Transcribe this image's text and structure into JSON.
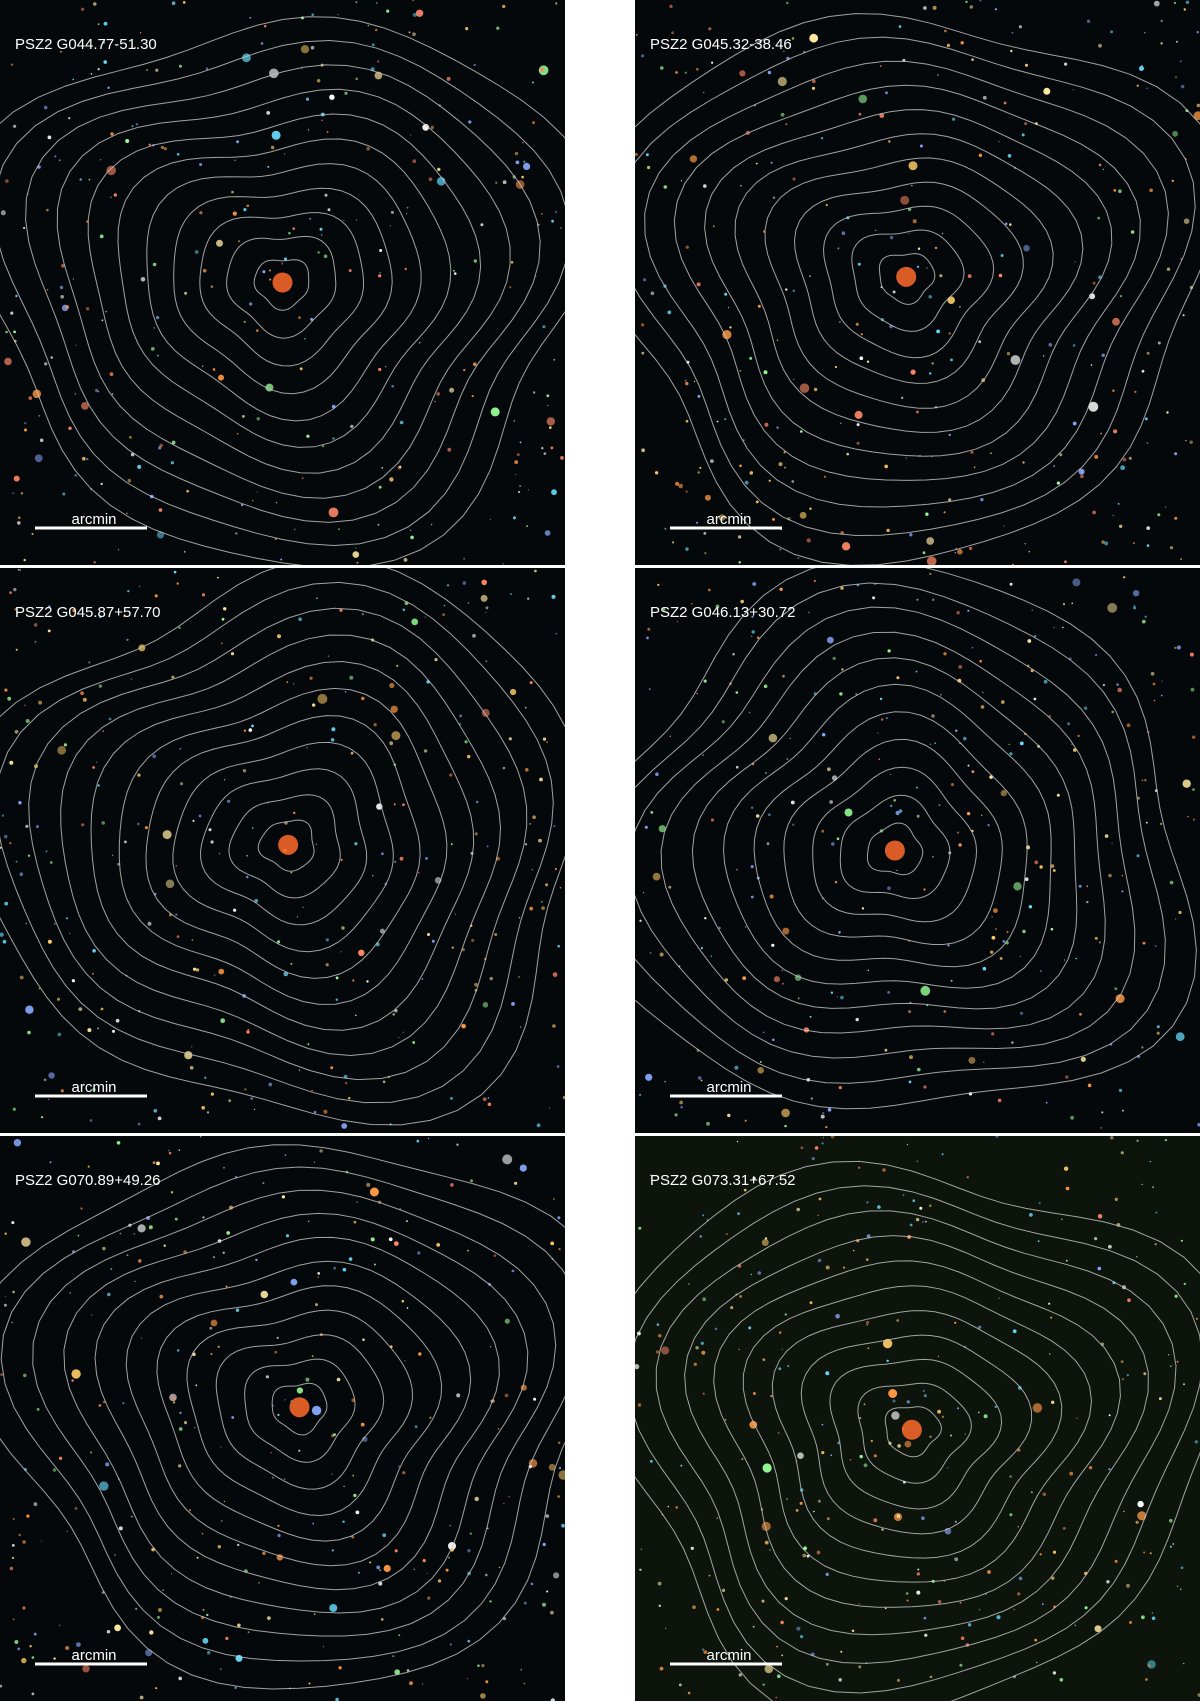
{
  "panels": [
    {
      "label": "PSZ2 G044.77-51.30",
      "scale_label": "arcmin"
    },
    {
      "label": "PSZ2 G045.32-38.46",
      "scale_label": "arcmin"
    },
    {
      "label": "PSZ2 G045.87+57.70",
      "scale_label": "arcmin"
    },
    {
      "label": "PSZ2 G046.13+30.72",
      "scale_label": "arcmin"
    },
    {
      "label": "PSZ2 G070.89+49.26",
      "scale_label": "arcmin"
    },
    {
      "label": "PSZ2 G073.31+67.52",
      "scale_label": "arcmin"
    }
  ]
}
